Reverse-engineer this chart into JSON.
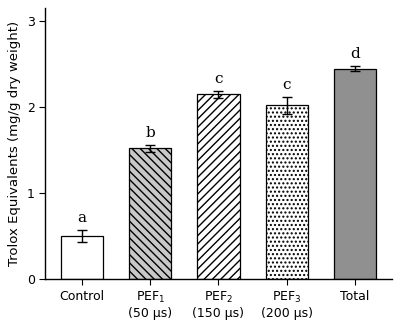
{
  "categories": [
    "Control",
    "PEF$_1$\n(50 μs)",
    "PEF$_2$\n(150 μs)",
    "PEF$_3$\n(200 μs)",
    "Total"
  ],
  "values": [
    0.5,
    1.52,
    2.15,
    2.02,
    2.45
  ],
  "errors": [
    0.07,
    0.04,
    0.04,
    0.1,
    0.03
  ],
  "letters": [
    "a",
    "b",
    "c",
    "c",
    "d"
  ],
  "hatches": [
    "",
    "\\\\\\\\",
    "////",
    "....",
    ""
  ],
  "facecolors": [
    "white",
    "#c8c8c8",
    "white",
    "white",
    "#909090"
  ],
  "edgecolors": [
    "black",
    "black",
    "black",
    "black",
    "black"
  ],
  "hatch_colors": [
    "black",
    "black",
    "black",
    "black",
    "black"
  ],
  "ylabel": "Trolox Equivalents (mg/g dry weight)",
  "ylim": [
    0,
    3.15
  ],
  "yticks": [
    0,
    1,
    2,
    3
  ],
  "bar_width": 0.62,
  "letter_fontsize": 11,
  "label_fontsize": 9.5,
  "tick_fontsize": 9
}
